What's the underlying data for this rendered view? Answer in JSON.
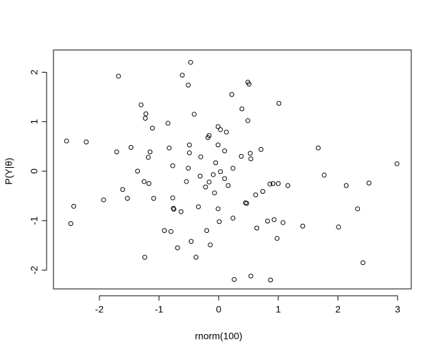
{
  "chart_data": {
    "type": "scatter",
    "x_label": "rnorm(100)",
    "y_label": "P(Y|θ)",
    "xlim": [
      -2.77,
      3.23
    ],
    "ylim": [
      -2.38,
      2.45
    ],
    "xticks": [
      -2,
      -1,
      0,
      1,
      2,
      3
    ],
    "yticks": [
      -2,
      -1,
      0,
      1,
      2
    ],
    "color": "#000000",
    "series": [
      {
        "x": [
          -2.55,
          -2.22,
          -2.43,
          -2.48,
          -1.93,
          -1.68,
          -1.71,
          -1.61,
          -1.53,
          -1.47,
          -1.36,
          -1.3,
          -1.22,
          -1.23,
          -1.11,
          -1.15,
          -1.18,
          -1.25,
          -1.17,
          -1.09,
          -1.24,
          -0.85,
          -0.83,
          -0.77,
          -0.77,
          -0.76,
          -0.75,
          -0.91,
          -0.8,
          -0.69,
          -0.63,
          -0.61,
          -0.51,
          -0.47,
          -0.41,
          -0.49,
          -0.49,
          -0.51,
          -0.54,
          -0.3,
          -0.31,
          -0.34,
          -0.46,
          -0.38,
          -0.18,
          -0.16,
          -0.22,
          -0.16,
          -0.09,
          -0.05,
          -0.07,
          -0.2,
          -0.14,
          -0.01,
          0.03,
          -0.01,
          0.03,
          -0.01,
          0.01,
          0.13,
          0.1,
          0.1,
          0.16,
          0.22,
          0.24,
          0.24,
          0.26,
          0.39,
          0.38,
          0.49,
          0.51,
          0.49,
          0.53,
          0.54,
          0.45,
          0.47,
          0.54,
          0.62,
          0.64,
          0.71,
          0.74,
          0.82,
          0.86,
          0.91,
          0.93,
          0.87,
          1.0,
          0.98,
          1.01,
          1.08,
          1.16,
          1.41,
          1.67,
          1.77,
          2.01,
          2.14,
          2.33,
          2.42,
          2.52,
          2.99
        ],
        "y": [
          0.61,
          0.59,
          -0.71,
          -1.06,
          -0.58,
          1.92,
          0.39,
          -0.37,
          -0.55,
          0.48,
          0.0,
          1.34,
          1.16,
          1.07,
          0.87,
          0.39,
          0.28,
          -0.21,
          -0.25,
          -0.55,
          -1.74,
          0.97,
          0.47,
          0.11,
          -0.54,
          -0.75,
          -0.77,
          -1.2,
          -1.22,
          -1.55,
          -0.82,
          1.94,
          1.74,
          2.2,
          1.15,
          0.53,
          0.37,
          0.06,
          -0.21,
          0.29,
          -0.1,
          -0.72,
          -1.42,
          -1.74,
          0.68,
          0.72,
          -0.32,
          -0.22,
          -0.07,
          0.17,
          -0.44,
          -1.2,
          -1.49,
          0.9,
          0.84,
          0.53,
          -0.01,
          -0.76,
          -1.02,
          0.79,
          0.41,
          -0.15,
          -0.29,
          1.55,
          0.06,
          -0.95,
          -2.19,
          1.26,
          0.3,
          1.8,
          1.76,
          1.02,
          0.36,
          0.25,
          -0.64,
          -0.65,
          -2.12,
          -0.48,
          -1.15,
          0.44,
          -0.41,
          -1.01,
          -0.26,
          -0.25,
          -0.98,
          -2.2,
          -0.25,
          -1.36,
          1.37,
          -1.04,
          -0.29,
          -1.11,
          0.47,
          -0.08,
          -1.13,
          -0.29,
          -0.76,
          -1.85,
          -0.24,
          0.15
        ]
      }
    ]
  }
}
